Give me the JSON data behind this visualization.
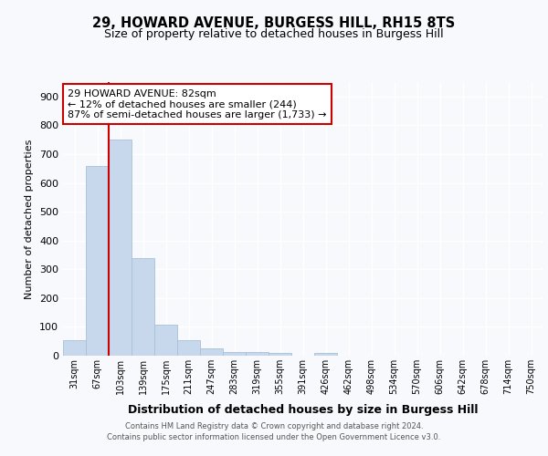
{
  "title_line1": "29, HOWARD AVENUE, BURGESS HILL, RH15 8TS",
  "title_line2": "Size of property relative to detached houses in Burgess Hill",
  "xlabel": "Distribution of detached houses by size in Burgess Hill",
  "ylabel": "Number of detached properties",
  "bin_labels": [
    "31sqm",
    "67sqm",
    "103sqm",
    "139sqm",
    "175sqm",
    "211sqm",
    "247sqm",
    "283sqm",
    "319sqm",
    "355sqm",
    "391sqm",
    "426sqm",
    "462sqm",
    "498sqm",
    "534sqm",
    "570sqm",
    "606sqm",
    "642sqm",
    "678sqm",
    "714sqm",
    "750sqm"
  ],
  "bar_values": [
    55,
    660,
    750,
    338,
    107,
    53,
    25,
    13,
    12,
    8,
    0,
    8,
    0,
    0,
    0,
    0,
    0,
    0,
    0,
    0,
    0
  ],
  "bar_color": "#c8d8ec",
  "bar_edge_color": "#a8c0d8",
  "vline_x_idx": 1,
  "vline_color": "#cc0000",
  "annotation_text": "29 HOWARD AVENUE: 82sqm\n← 12% of detached houses are smaller (244)\n87% of semi-detached houses are larger (1,733) →",
  "annotation_box_facecolor": "#ffffff",
  "annotation_box_edgecolor": "#cc0000",
  "ylim": [
    0,
    950
  ],
  "yticks": [
    0,
    100,
    200,
    300,
    400,
    500,
    600,
    700,
    800,
    900
  ],
  "bg_color": "#f7f9fc",
  "grid_color": "#ffffff",
  "title_fontsize": 10.5,
  "subtitle_fontsize": 9,
  "ylabel_fontsize": 8,
  "xlabel_fontsize": 9,
  "footer_line1": "Contains HM Land Registry data © Crown copyright and database right 2024.",
  "footer_line2": "Contains public sector information licensed under the Open Government Licence v3.0."
}
